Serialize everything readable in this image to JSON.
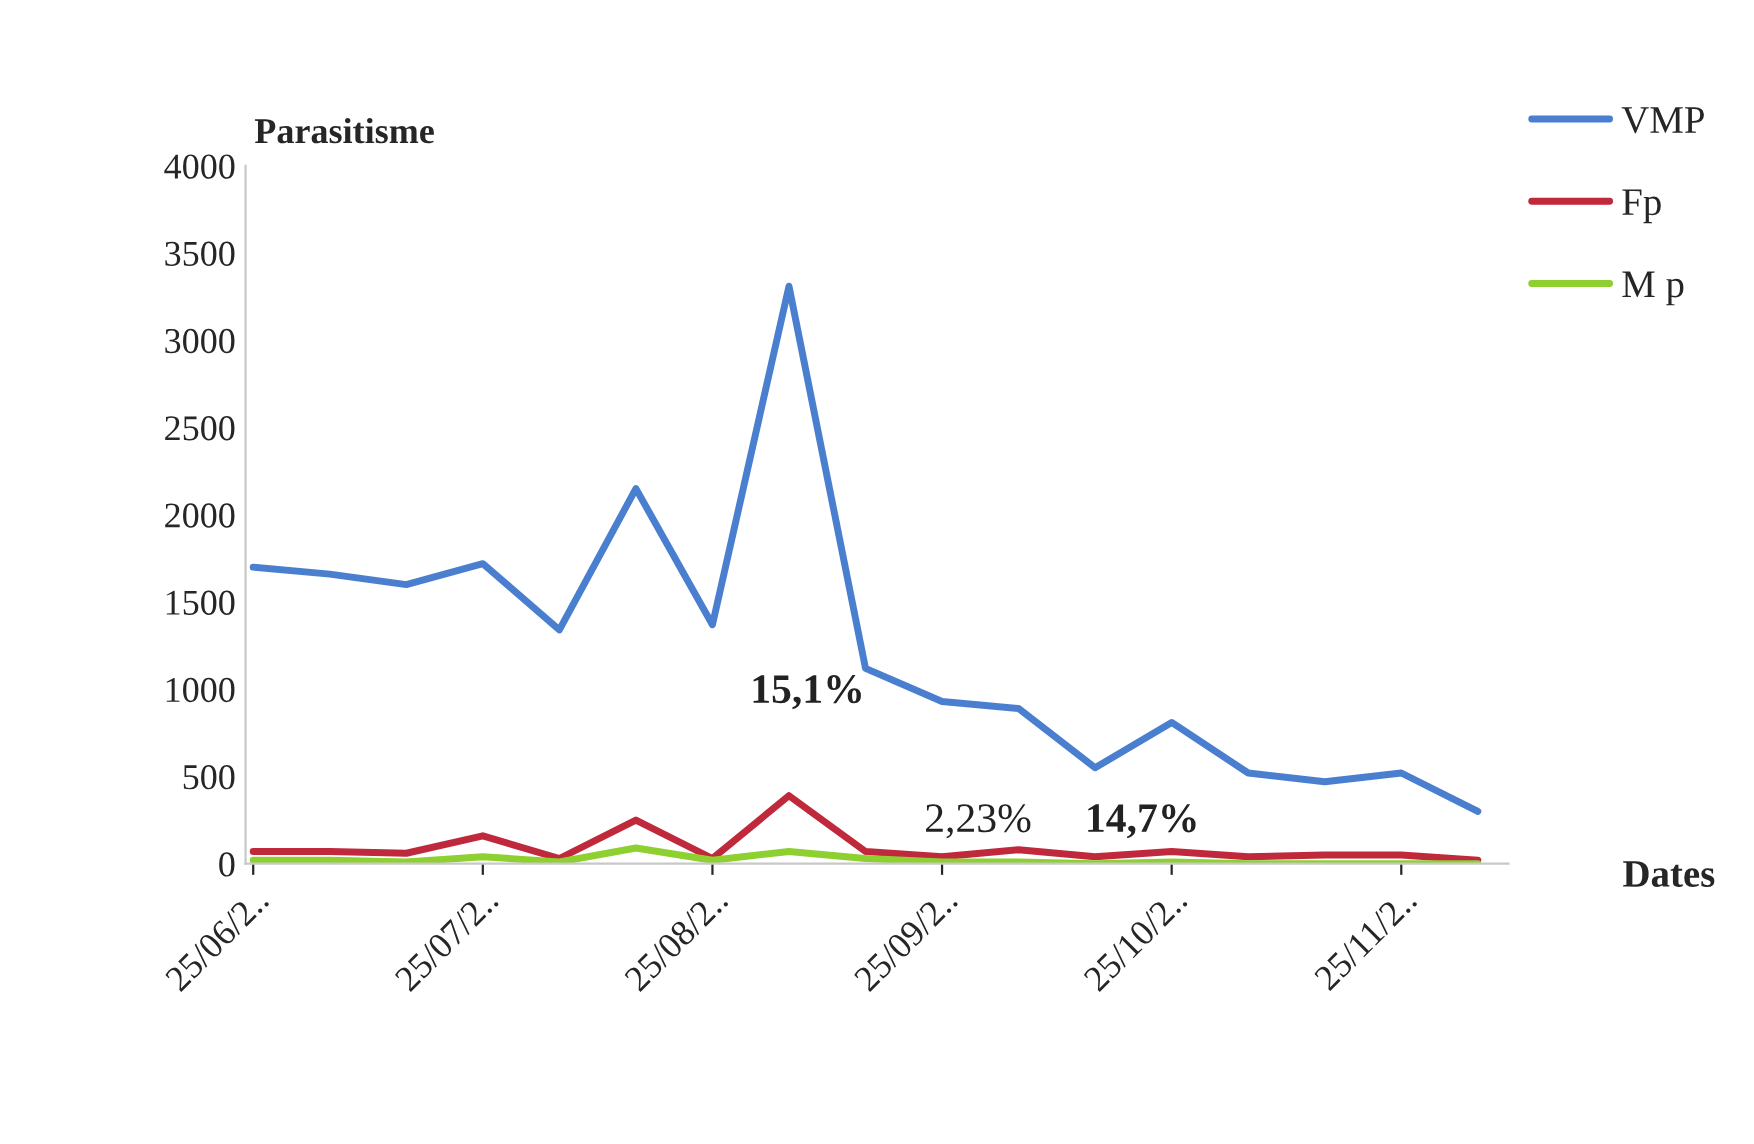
{
  "chart_data": {
    "type": "line",
    "categories": [
      "25/06/2..",
      null,
      null,
      "25/07/2..",
      null,
      null,
      "25/08/2..",
      null,
      null,
      "25/09/2..",
      null,
      null,
      "25/10/2..",
      null,
      null,
      "25/11/2..",
      null
    ],
    "series": [
      {
        "name": "VMP",
        "color": "#4a7fd0",
        "values": [
          1700,
          1660,
          1600,
          1720,
          1340,
          2150,
          1370,
          3310,
          1120,
          930,
          890,
          550,
          810,
          520,
          470,
          520,
          300
        ]
      },
      {
        "name": "Fp",
        "color": "#c0283c",
        "values": [
          70,
          70,
          60,
          160,
          30,
          250,
          30,
          390,
          70,
          40,
          80,
          40,
          70,
          40,
          50,
          50,
          20
        ]
      },
      {
        "name": "M p",
        "color": "#8dd030",
        "values": [
          20,
          20,
          10,
          40,
          10,
          90,
          20,
          70,
          30,
          10,
          10,
          0,
          10,
          0,
          0,
          0,
          0
        ]
      }
    ],
    "ylabel": "Parasitisme",
    "xlabel": "Dates",
    "ylim": [
      0,
      4000
    ],
    "yticks": [
      0,
      500,
      1000,
      1500,
      2000,
      2500,
      3000,
      3500,
      4000
    ],
    "annotations": [
      "15,1%",
      "2,23%",
      "14,7%"
    ],
    "legend": "top right",
    "grid": false,
    "marker": "none",
    "line_style": "solid"
  }
}
